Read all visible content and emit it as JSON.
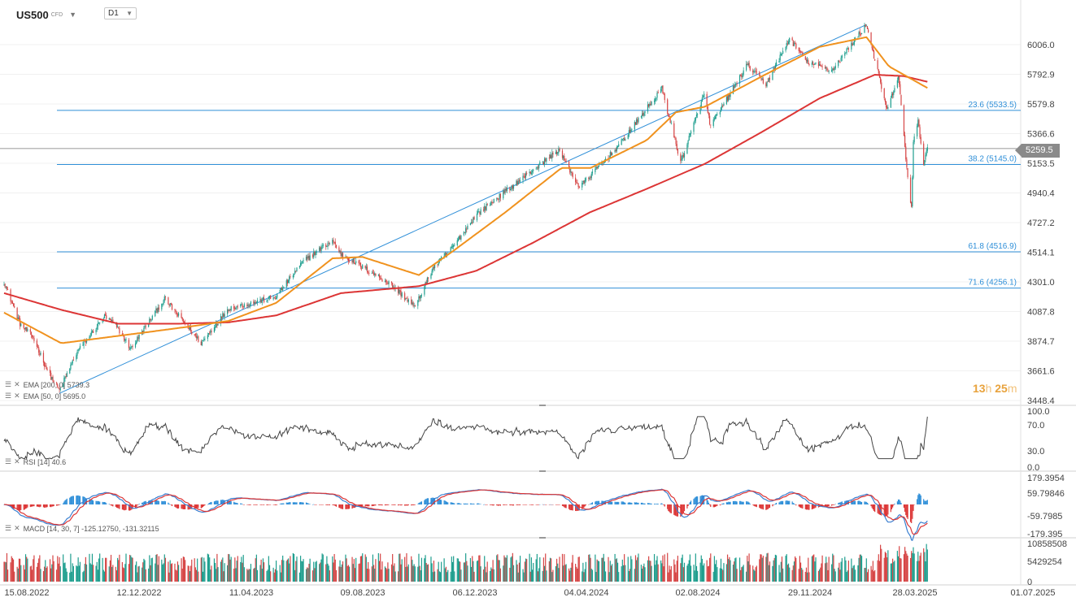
{
  "header": {
    "symbol": "US500",
    "symbol_type": "CFD",
    "timeframe": "D1"
  },
  "countdown": {
    "hours": "13",
    "hours_unit": "h",
    "minutes": "25",
    "minutes_unit": "m"
  },
  "legends": {
    "ema200": "EMA [200, 0] 5739.3",
    "ema50": "EMA [50, 0] 5695.0",
    "rsi": "RSI [14] 40.6",
    "macd": "MACD [14, 30, 7] -125.12750, -131.32115"
  },
  "colors": {
    "up": "#1e9e8e",
    "down": "#d64545",
    "ema50": "#f0921e",
    "ema200": "#dc3535",
    "fib": "#2f8fd8",
    "trend": "#2f8fd8",
    "rsi": "#444444",
    "macd_line": "#3a7fd0",
    "signal_line": "#dc3535",
    "hist_up": "#2f8fd8",
    "hist_down": "#dc3535"
  },
  "chart_data": {
    "type": "candlestick",
    "price_ticks": [
      "6006.0",
      "5792.9",
      "5579.8",
      "5366.6",
      "5153.5",
      "4940.4",
      "4727.2",
      "4514.1",
      "4301.0",
      "4087.8",
      "3874.7",
      "3661.6",
      "3448.4"
    ],
    "last_price": "5259.5",
    "x_ticks": [
      "15.08.2022",
      "12.12.2022",
      "11.04.2023",
      "09.08.2023",
      "06.12.2023",
      "04.04.2024",
      "02.08.2024",
      "29.11.2024",
      "28.03.2025",
      "01.07.2025"
    ],
    "fib_levels": [
      {
        "label": "23.6 (5533.5)",
        "value": 5533.5
      },
      {
        "label": "38.2 (5145.0)",
        "value": 5145.0
      },
      {
        "label": "61.8 (4516.9)",
        "value": 4516.9
      },
      {
        "label": "71.6 (4256.1)",
        "value": 4256.1
      }
    ],
    "trendline": [
      {
        "date": "2022-10-13",
        "value": 3500
      },
      {
        "date": "2025-02-19",
        "value": 6150
      }
    ],
    "price_anchors": [
      [
        "2022-08-15",
        4300
      ],
      [
        "2022-09-01",
        4000
      ],
      [
        "2022-09-15",
        3900
      ],
      [
        "2022-10-01",
        3650
      ],
      [
        "2022-10-13",
        3520
      ],
      [
        "2022-11-01",
        3800
      ],
      [
        "2022-11-30",
        4050
      ],
      [
        "2022-12-12",
        3990
      ],
      [
        "2022-12-28",
        3820
      ],
      [
        "2023-01-15",
        4000
      ],
      [
        "2023-02-02",
        4180
      ],
      [
        "2023-03-13",
        3860
      ],
      [
        "2023-04-11",
        4110
      ],
      [
        "2023-05-31",
        4190
      ],
      [
        "2023-06-30",
        4450
      ],
      [
        "2023-07-31",
        4600
      ],
      [
        "2023-08-09",
        4500
      ],
      [
        "2023-09-30",
        4290
      ],
      [
        "2023-10-27",
        4120
      ],
      [
        "2023-11-15",
        4400
      ],
      [
        "2023-12-06",
        4550
      ],
      [
        "2024-01-01",
        4790
      ],
      [
        "2024-03-28",
        5250
      ],
      [
        "2024-04-19",
        4980
      ],
      [
        "2024-05-31",
        5280
      ],
      [
        "2024-07-16",
        5690
      ],
      [
        "2024-08-05",
        5160
      ],
      [
        "2024-08-30",
        5650
      ],
      [
        "2024-09-06",
        5420
      ],
      [
        "2024-10-15",
        5860
      ],
      [
        "2024-11-04",
        5720
      ],
      [
        "2024-11-29",
        6050
      ],
      [
        "2024-12-18",
        5880
      ],
      [
        "2025-01-13",
        5820
      ],
      [
        "2025-02-19",
        6150
      ],
      [
        "2025-03-13",
        5530
      ],
      [
        "2025-03-25",
        5780
      ],
      [
        "2025-04-04",
        5050
      ],
      [
        "2025-04-08",
        4830
      ],
      [
        "2025-04-10",
        5300
      ],
      [
        "2025-04-15",
        5450
      ],
      [
        "2025-04-21",
        5160
      ],
      [
        "2025-04-25",
        5259.5
      ]
    ],
    "ema50_anchors": [
      [
        "2022-08-15",
        4080
      ],
      [
        "2022-10-15",
        3860
      ],
      [
        "2022-11-30",
        3900
      ],
      [
        "2023-01-15",
        3940
      ],
      [
        "2023-03-01",
        3980
      ],
      [
        "2023-04-11",
        4020
      ],
      [
        "2023-06-01",
        4150
      ],
      [
        "2023-07-31",
        4470
      ],
      [
        "2023-09-01",
        4480
      ],
      [
        "2023-10-31",
        4350
      ],
      [
        "2023-12-06",
        4520
      ],
      [
        "2024-01-31",
        4800
      ],
      [
        "2024-03-31",
        5120
      ],
      [
        "2024-05-01",
        5120
      ],
      [
        "2024-06-30",
        5320
      ],
      [
        "2024-07-31",
        5520
      ],
      [
        "2024-08-31",
        5560
      ],
      [
        "2024-10-31",
        5780
      ],
      [
        "2024-12-31",
        5990
      ],
      [
        "2025-02-19",
        6060
      ],
      [
        "2025-03-15",
        5850
      ],
      [
        "2025-04-25",
        5695
      ]
    ],
    "ema200_anchors": [
      [
        "2022-08-15",
        4220
      ],
      [
        "2022-10-15",
        4100
      ],
      [
        "2022-12-15",
        4000
      ],
      [
        "2023-02-15",
        4000
      ],
      [
        "2023-04-11",
        4010
      ],
      [
        "2023-06-01",
        4060
      ],
      [
        "2023-08-09",
        4220
      ],
      [
        "2023-10-31",
        4270
      ],
      [
        "2023-12-31",
        4380
      ],
      [
        "2024-02-29",
        4580
      ],
      [
        "2024-04-30",
        4800
      ],
      [
        "2024-06-30",
        4970
      ],
      [
        "2024-08-31",
        5150
      ],
      [
        "2024-10-31",
        5380
      ],
      [
        "2024-12-31",
        5620
      ],
      [
        "2025-02-28",
        5790
      ],
      [
        "2025-03-31",
        5780
      ],
      [
        "2025-04-25",
        5739.3
      ]
    ],
    "rsi_ticks": [
      "100.0",
      "70.0",
      "30.0",
      "0.0"
    ],
    "macd_ticks": [
      "179.3954",
      "59.79846",
      "-59.7985",
      "-179.395"
    ],
    "volume_ticks": [
      "10858508",
      "5429254",
      "0"
    ]
  }
}
